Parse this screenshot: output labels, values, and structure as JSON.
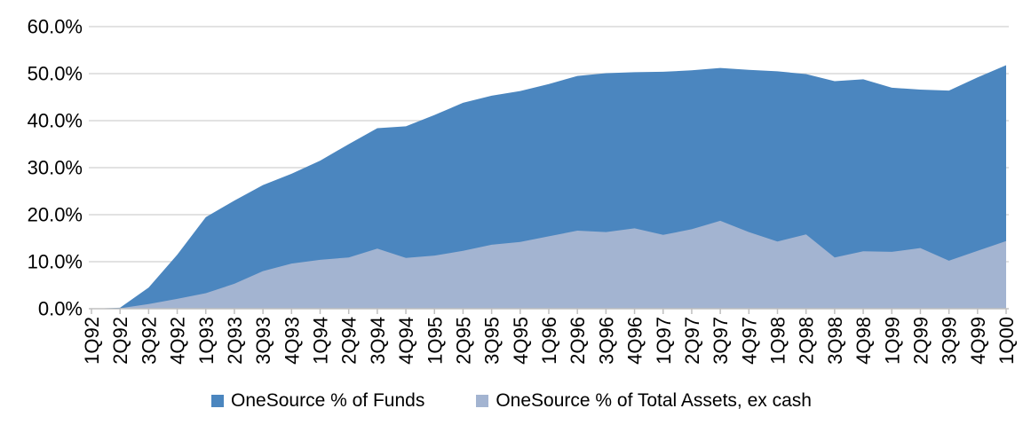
{
  "chart_data": {
    "type": "area",
    "title": "",
    "xlabel": "",
    "ylabel": "",
    "ylim": [
      0,
      60
    ],
    "ytick_step": 10,
    "ytick_labels": [
      "0.0%",
      "10.0%",
      "20.0%",
      "30.0%",
      "40.0%",
      "50.0%",
      "60.0%"
    ],
    "grid": true,
    "legend_position": "bottom",
    "gridline_color": "#d9d9d9",
    "axis_color": "#bfbfbf",
    "text_color": "#000000",
    "categories": [
      "1Q92",
      "2Q92",
      "3Q92",
      "4Q92",
      "1Q93",
      "2Q93",
      "3Q93",
      "4Q93",
      "1Q94",
      "2Q94",
      "3Q94",
      "4Q94",
      "1Q95",
      "2Q95",
      "3Q95",
      "4Q95",
      "1Q96",
      "2Q96",
      "3Q96",
      "4Q96",
      "1Q97",
      "2Q97",
      "3Q97",
      "4Q97",
      "1Q98",
      "2Q98",
      "3Q98",
      "4Q98",
      "1Q99",
      "2Q99",
      "3Q99",
      "4Q99",
      "1Q00"
    ],
    "series": [
      {
        "name": "OneSource % of Funds",
        "color": "#4b86bf",
        "values": [
          0,
          0.2,
          4.5,
          11.5,
          19.5,
          23.0,
          26.3,
          28.7,
          31.5,
          35.0,
          38.4,
          38.8,
          41.2,
          43.8,
          45.3,
          46.3,
          47.8,
          49.5,
          50.1,
          50.3,
          50.4,
          50.7,
          51.2,
          50.8,
          50.5,
          49.9,
          48.4,
          48.8,
          47.0,
          46.6,
          46.4,
          49.2,
          51.8
        ]
      },
      {
        "name": "OneSource % of Total Assets, ex cash",
        "color": "#a3b4d1",
        "values": [
          0,
          0.1,
          1.0,
          2.1,
          3.3,
          5.3,
          8.0,
          9.6,
          10.4,
          10.9,
          12.8,
          10.8,
          11.3,
          12.3,
          13.6,
          14.2,
          15.4,
          16.6,
          16.3,
          17.1,
          15.7,
          16.9,
          18.7,
          16.3,
          14.3,
          15.8,
          10.9,
          12.2,
          12.1,
          12.9,
          10.2,
          12.3,
          14.4
        ]
      }
    ]
  }
}
